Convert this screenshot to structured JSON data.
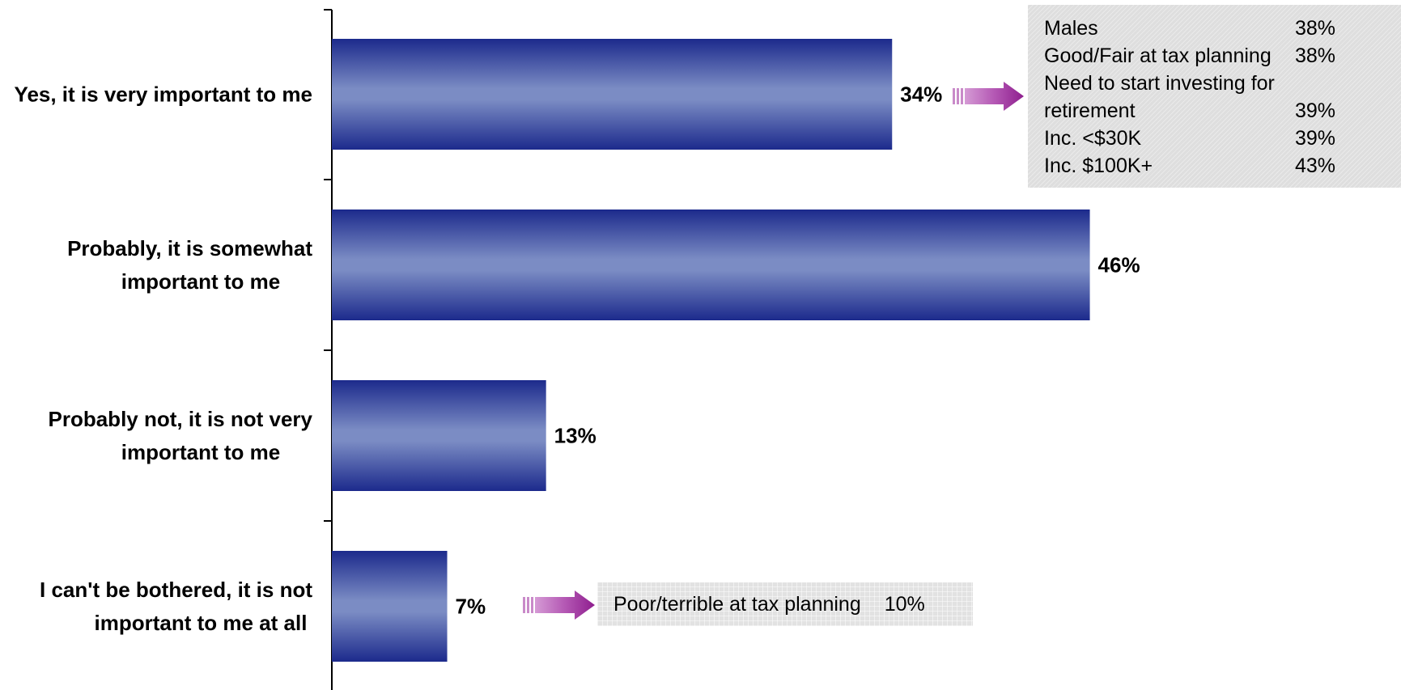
{
  "chart_data": {
    "type": "bar",
    "orientation": "horizontal",
    "title": "",
    "xlabel": "",
    "ylabel": "",
    "categories": [
      "Yes, it is very important to me",
      "Probably, it is somewhat important to me",
      "Probably not, it is not very important to me",
      "I can't be bothered, it is not important to me at all"
    ],
    "category_lines": [
      [
        "Yes, it is very important to me"
      ],
      [
        "Probably, it is somewhat",
        "important to me"
      ],
      [
        "Probably not, it is not very",
        "important to me"
      ],
      [
        "I can't be bothered, it is not",
        "important to me at all"
      ]
    ],
    "values": [
      34,
      46,
      13,
      7
    ],
    "value_labels": [
      "34%",
      "46%",
      "13%",
      "7%"
    ],
    "xlim": [
      0,
      50
    ],
    "grid": false,
    "legend": "none",
    "colors": {
      "bar_edge": "#1c2a8c",
      "bar_center": "#7b8cc4",
      "arrow": "#8e1e8e",
      "arrow_light": "#c98ac9"
    }
  },
  "callouts": {
    "top": {
      "rows": [
        {
          "label": "Males",
          "value": "38%"
        },
        {
          "label": "Good/Fair at tax planning",
          "value": "38%"
        },
        {
          "label": "Need to start investing for",
          "value": ""
        },
        {
          "label": "retirement",
          "value": "39%"
        },
        {
          "label": "Inc. <$30K",
          "value": "39%"
        },
        {
          "label": "Inc. $100K+",
          "value": "43%"
        }
      ]
    },
    "bottom": {
      "label": "Poor/terrible at tax planning",
      "value": "10%"
    }
  }
}
